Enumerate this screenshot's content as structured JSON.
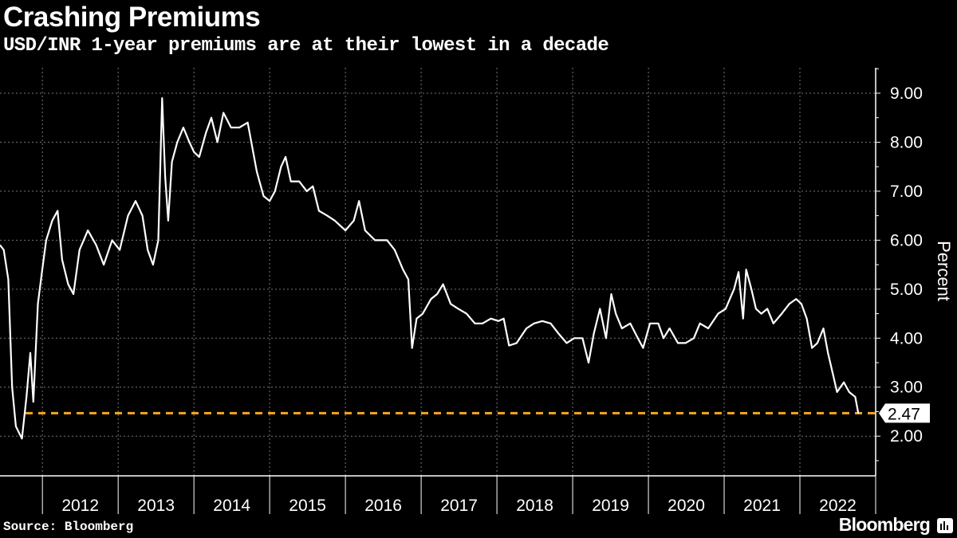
{
  "header": {
    "title": "Crashing Premiums",
    "subtitle": "USD/INR 1-year premiums are at their lowest in a decade"
  },
  "footer": {
    "source": "Source: Bloomberg",
    "logo": "Bloomberg"
  },
  "chart_data": {
    "type": "line",
    "title": "Crashing Premiums",
    "subtitle": "USD/INR 1-year premiums are at their lowest in a decade",
    "ylabel": "Percent",
    "xlabel": "",
    "xlim": [
      2011.44,
      2023.0
    ],
    "ylim": [
      1.19,
      9.52
    ],
    "grid": true,
    "x_ticks": [
      "2012",
      "2013",
      "2014",
      "2015",
      "2016",
      "2017",
      "2018",
      "2019",
      "2020",
      "2021",
      "2022"
    ],
    "y_ticks": [
      "2.00",
      "3.00",
      "4.00",
      "5.00",
      "6.00",
      "7.00",
      "8.00",
      "9.00"
    ],
    "reference_line": {
      "value": 2.47,
      "label": "2.47",
      "color": "#f5a623"
    },
    "line_color": "#ffffff",
    "series": [
      {
        "x": [
          2011.44,
          2011.49,
          2011.55,
          2011.6,
          2011.65,
          2011.73,
          2011.79,
          2011.84,
          2011.88,
          2011.94,
          2011.99,
          2012.05,
          2012.13,
          2012.2,
          2012.26,
          2012.34,
          2012.41,
          2012.49,
          2012.6,
          2012.71,
          2012.81,
          2012.92,
          2013.02,
          2013.13,
          2013.23,
          2013.32,
          2013.39,
          2013.46,
          2013.53,
          2013.58,
          2013.62,
          2013.66,
          2013.71,
          2013.78,
          2013.86,
          2013.94,
          2014.0,
          2014.07,
          2014.16,
          2014.23,
          2014.31,
          2014.39,
          2014.49,
          2014.6,
          2014.71,
          2014.77,
          2014.83,
          2014.92,
          2015.0,
          2015.07,
          2015.15,
          2015.21,
          2015.28,
          2015.39,
          2015.49,
          2015.57,
          2015.65,
          2015.76,
          2015.86,
          2016.0,
          2016.11,
          2016.18,
          2016.26,
          2016.39,
          2016.55,
          2016.65,
          2016.76,
          2016.83,
          2016.88,
          2016.94,
          2017.02,
          2017.13,
          2017.21,
          2017.29,
          2017.39,
          2017.49,
          2017.6,
          2017.71,
          2017.81,
          2017.92,
          2018.02,
          2018.09,
          2018.16,
          2018.26,
          2018.39,
          2018.49,
          2018.6,
          2018.71,
          2018.81,
          2018.92,
          2019.02,
          2019.13,
          2019.21,
          2019.28,
          2019.36,
          2019.44,
          2019.51,
          2019.57,
          2019.65,
          2019.76,
          2019.86,
          2019.93,
          2020.02,
          2020.13,
          2020.2,
          2020.28,
          2020.39,
          2020.49,
          2020.6,
          2020.68,
          2020.79,
          2020.92,
          2021.02,
          2021.13,
          2021.19,
          2021.25,
          2021.29,
          2021.36,
          2021.42,
          2021.49,
          2021.57,
          2021.65,
          2021.76,
          2021.86,
          2021.95,
          2022.02,
          2022.09,
          2022.16,
          2022.23,
          2022.31,
          2022.37,
          2022.43,
          2022.49,
          2022.58,
          2022.65,
          2022.73,
          2022.77
        ],
        "y": [
          5.9,
          5.8,
          5.2,
          3.0,
          2.2,
          1.95,
          2.8,
          3.7,
          2.7,
          4.7,
          5.3,
          6.0,
          6.4,
          6.6,
          5.6,
          5.1,
          4.9,
          5.8,
          6.2,
          5.9,
          5.5,
          6.0,
          5.8,
          6.5,
          6.8,
          6.5,
          5.8,
          5.5,
          6.0,
          8.9,
          7.3,
          6.4,
          7.6,
          8.0,
          8.3,
          8.0,
          7.8,
          7.7,
          8.2,
          8.5,
          8.0,
          8.6,
          8.3,
          8.3,
          8.4,
          7.9,
          7.4,
          6.9,
          6.8,
          7.0,
          7.5,
          7.7,
          7.2,
          7.2,
          7.0,
          7.1,
          6.6,
          6.5,
          6.4,
          6.2,
          6.4,
          6.8,
          6.2,
          6.0,
          6.0,
          5.8,
          5.4,
          5.2,
          3.8,
          4.4,
          4.5,
          4.8,
          4.9,
          5.1,
          4.7,
          4.6,
          4.5,
          4.3,
          4.3,
          4.4,
          4.35,
          4.4,
          3.85,
          3.9,
          4.2,
          4.3,
          4.35,
          4.3,
          4.1,
          3.9,
          4.0,
          4.0,
          3.5,
          4.1,
          4.6,
          4.0,
          4.9,
          4.5,
          4.2,
          4.3,
          4.0,
          3.8,
          4.3,
          4.3,
          4.0,
          4.2,
          3.9,
          3.9,
          4.0,
          4.3,
          4.2,
          4.5,
          4.6,
          5.0,
          5.35,
          4.4,
          5.4,
          5.0,
          4.6,
          4.5,
          4.6,
          4.3,
          4.5,
          4.7,
          4.8,
          4.7,
          4.4,
          3.8,
          3.9,
          4.2,
          3.7,
          3.3,
          2.9,
          3.1,
          2.9,
          2.8,
          2.47
        ]
      }
    ]
  }
}
